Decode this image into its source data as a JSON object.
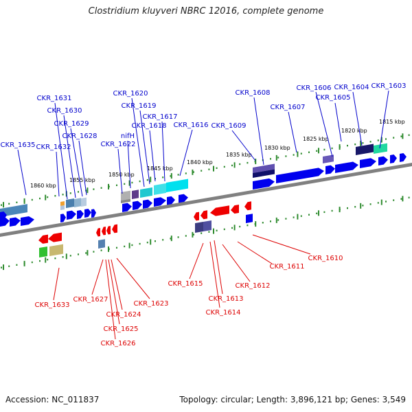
{
  "title": "Clostridium kluyveri NBRC 12016, complete genome",
  "footer": {
    "accession": "Accession: NC_011837",
    "stats": "Topology: circular; Length: 3,896,121 bp; Genes: 3,549"
  },
  "colors": {
    "backbone": "#808080",
    "forward_gene": "#0000ee",
    "reverse_gene": "#ee0000",
    "forward_label": "#0000cc",
    "reverse_label": "#dd0000",
    "tick": "#2e8b2e"
  },
  "ticks": [
    "1815 kbp",
    "1820 kbp",
    "1825 kbp",
    "1830 kbp",
    "1835 kbp",
    "1840 kbp",
    "1845 kbp",
    "1850 kbp",
    "1855 kbp",
    "1860 kbp"
  ],
  "forward_labels": [
    "CKR_1603",
    "CKR_1604",
    "CKR_1605",
    "CKR_1606",
    "CKR_1607",
    "CKR_1608",
    "CKR_1609",
    "CKR_1616",
    "CKR_1617",
    "CKR_1618",
    "CKR_1619",
    "CKR_1620",
    "nifH",
    "CKR_1622",
    "CKR_1628",
    "CKR_1629",
    "CKR_1630",
    "CKR_1631",
    "CKR_1632",
    "CKR_1635"
  ],
  "reverse_labels": [
    "CKR_1610",
    "CKR_1611",
    "CKR_1612",
    "CKR_1613",
    "CKR_1614",
    "CKR_1615",
    "CKR_1623",
    "CKR_1624",
    "CKR_1625",
    "CKR_1626",
    "CKR_1627",
    "CKR_1633"
  ]
}
